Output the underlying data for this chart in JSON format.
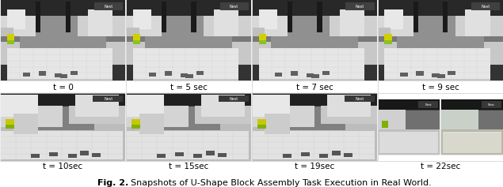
{
  "figure_label": "Fig. 2.",
  "figure_caption": "Snapshots of U-Shape Block Assembly Task Execution in Real World.",
  "caption_fontsize": 8.0,
  "timestamps_row1": [
    "t = 0",
    "t = 5 sec",
    "t = 7 sec",
    "t = 9 sec"
  ],
  "timestamps_row2": [
    "t = 10sec",
    "t = 15sec",
    "t = 19sec",
    "t = 22sec"
  ],
  "timestamp_fontsize": 7.5,
  "background_color": "#ffffff",
  "fig_width": 6.4,
  "fig_height": 2.47,
  "img_bg_dark": "#3a3a3a",
  "img_bg_wall": "#8a8a8a",
  "img_table": "#e8e8e8",
  "robot_white": "#e4e4e4",
  "robot_arm_dark": "#2a2a2a",
  "label_separator_color": "#cccccc"
}
